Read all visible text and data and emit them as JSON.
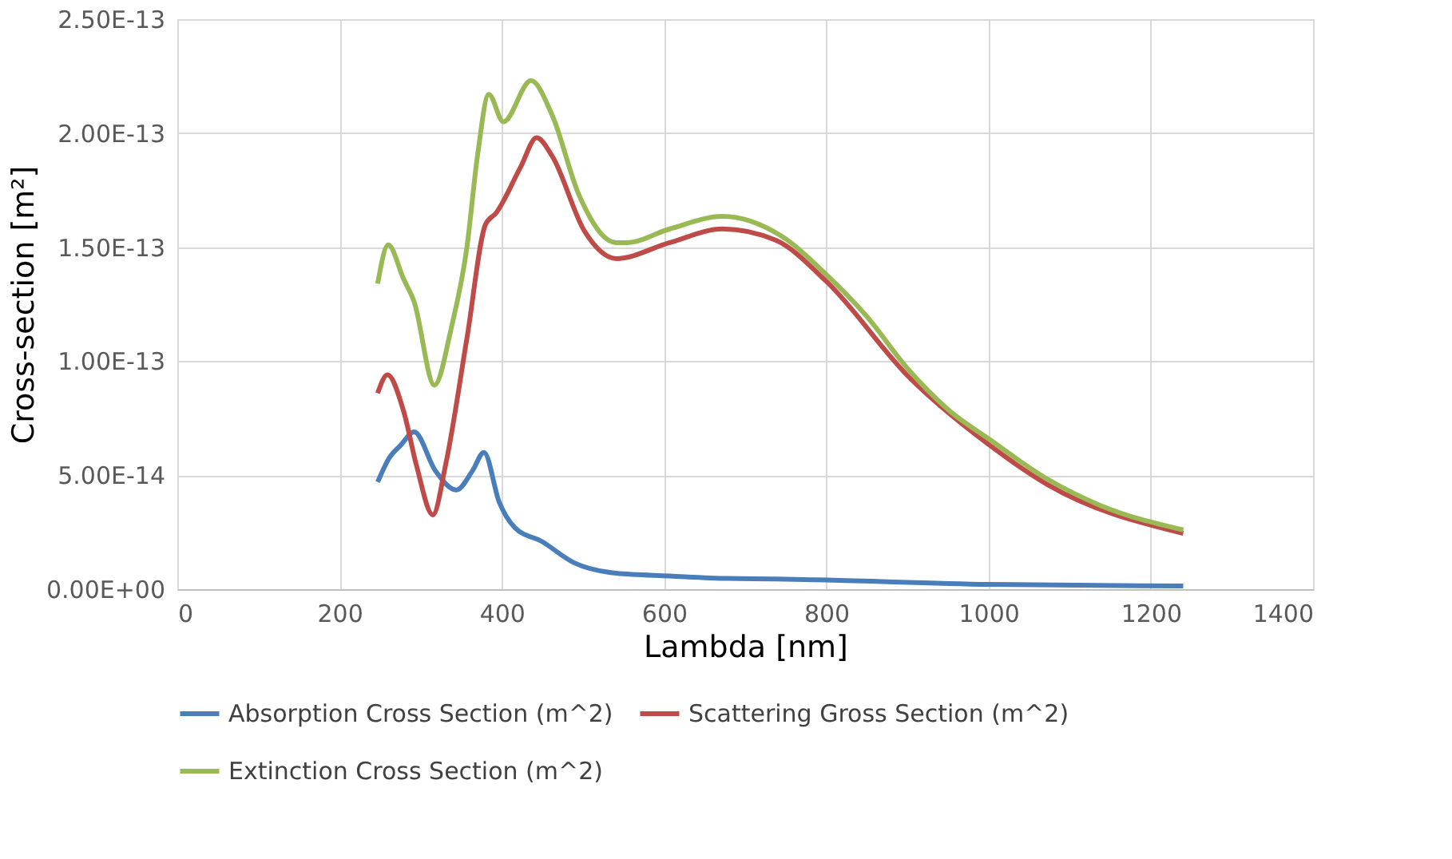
{
  "chart_data": {
    "type": "line",
    "xlabel": "Lambda [nm]",
    "ylabel": "Cross-section [m²]",
    "xlim": [
      0,
      1400
    ],
    "xticks": [
      0,
      200,
      400,
      600,
      800,
      1000,
      1200,
      1400
    ],
    "ylim": [
      0,
      2.5e-13
    ],
    "yticks": [
      {
        "value": 0,
        "label": "0.00E+00"
      },
      {
        "value": 5e-14,
        "label": "5.00E-14"
      },
      {
        "value": 1e-13,
        "label": "1.00E-13"
      },
      {
        "value": 1.5e-13,
        "label": "1.50E-13"
      },
      {
        "value": 2e-13,
        "label": "2.00E-13"
      },
      {
        "value": 2.5e-13,
        "label": "2.50E-13"
      }
    ],
    "grid": true,
    "legend": "bottom",
    "marker": "none",
    "line_style": "solid",
    "series": [
      {
        "name": "Absorption Cross Section (m^2)",
        "color": "#4a7ebb",
        "x": [
          247,
          262,
          275,
          292,
          318,
          344,
          364,
          378,
          397,
          416,
          449,
          489,
          541,
          607,
          679,
          738,
          800,
          1000,
          1240
        ],
        "values": [
          4.7e-14,
          5.8e-14,
          6.3e-14,
          6.9e-14,
          5.2e-14,
          4.35e-14,
          5.2e-14,
          6e-14,
          3.8e-14,
          2.7e-14,
          2.1e-14,
          1.16e-14,
          7e-15,
          5.8e-15,
          4.7e-15,
          4.5e-15,
          4e-15,
          2.1e-15,
          1.4e-15
        ]
      },
      {
        "name": "Scattering Gross Section (m^2)",
        "color": "#be4b48",
        "x": [
          247,
          259,
          279,
          295,
          315,
          331,
          357,
          380,
          393,
          423,
          443,
          462,
          502,
          541,
          607,
          672,
          738,
          800,
          902,
          1000,
          1072,
          1240
        ],
        "values": [
          8.6e-14,
          9.4e-14,
          7.8e-14,
          5.4e-14,
          3.26e-14,
          5.5e-14,
          1.1e-13,
          1.6e-13,
          1.65e-13,
          1.85e-13,
          1.98e-13,
          1.9e-13,
          1.57e-13,
          1.45e-13,
          1.52e-13,
          1.58e-13,
          1.53e-13,
          1.35e-13,
          9.3e-14,
          6.35e-14,
          4.6e-14,
          2.45e-14
        ]
      },
      {
        "name": "Extinction Cross Section (m^2)",
        "color": "#98b954",
        "x": [
          247,
          260,
          279,
          292,
          317,
          338,
          357,
          370,
          384,
          402,
          436,
          462,
          495,
          541,
          554,
          607,
          672,
          744,
          800,
          849,
          902,
          954,
          1000,
          1072,
          1138,
          1240
        ],
        "values": [
          1.34e-13,
          1.51e-13,
          1.36e-13,
          1.26e-13,
          8.95e-14,
          1.15e-13,
          1.5e-13,
          1.9e-13,
          2.17e-13,
          2.05e-13,
          2.23e-13,
          2.08e-13,
          1.73e-13,
          1.52e-13,
          1.52e-13,
          1.58e-13,
          1.635e-13,
          1.55e-13,
          1.38e-13,
          1.2e-13,
          9.6e-14,
          7.76e-14,
          6.6e-14,
          4.84e-14,
          3.67e-14,
          2.6e-14
        ]
      }
    ]
  }
}
